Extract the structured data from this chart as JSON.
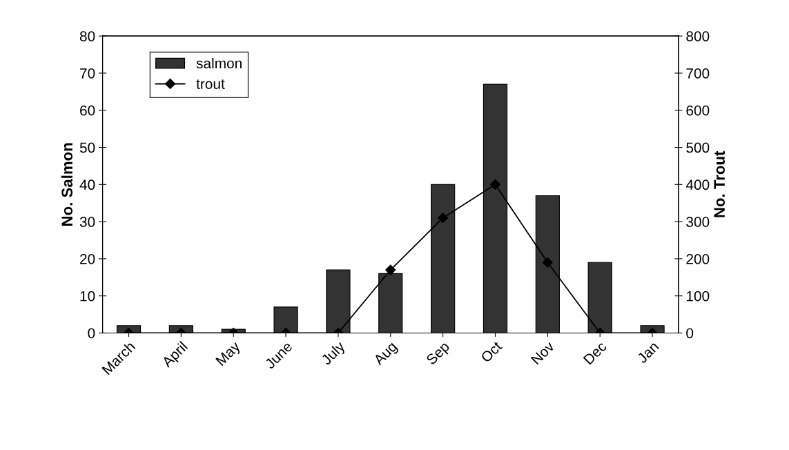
{
  "chart_data": {
    "type": "bar",
    "categories": [
      "March",
      "April",
      "May",
      "June",
      "July",
      "Aug",
      "Sep",
      "Oct",
      "Nov",
      "Dec",
      "Jan"
    ],
    "series": [
      {
        "name": "salmon",
        "color": "#333333",
        "values": [
          2,
          2,
          1,
          7,
          17,
          16,
          40,
          67,
          37,
          19,
          2
        ]
      },
      {
        "name": "trout",
        "type": "line",
        "axis": "y2",
        "color": "#000000",
        "marker": "diamond",
        "values": [
          0,
          0,
          0,
          0,
          0,
          170,
          310,
          400,
          190,
          0,
          0
        ]
      }
    ],
    "ylabel": "No. Salmon",
    "y2label": "No. Trout",
    "ylim": [
      0,
      80
    ],
    "yticks": [
      0,
      10,
      20,
      30,
      40,
      50,
      60,
      70,
      80
    ],
    "y2lim": [
      0,
      800
    ],
    "y2ticks": [
      0,
      100,
      200,
      300,
      400,
      500,
      600,
      700,
      800
    ],
    "legend": "top left",
    "grid": false
  }
}
